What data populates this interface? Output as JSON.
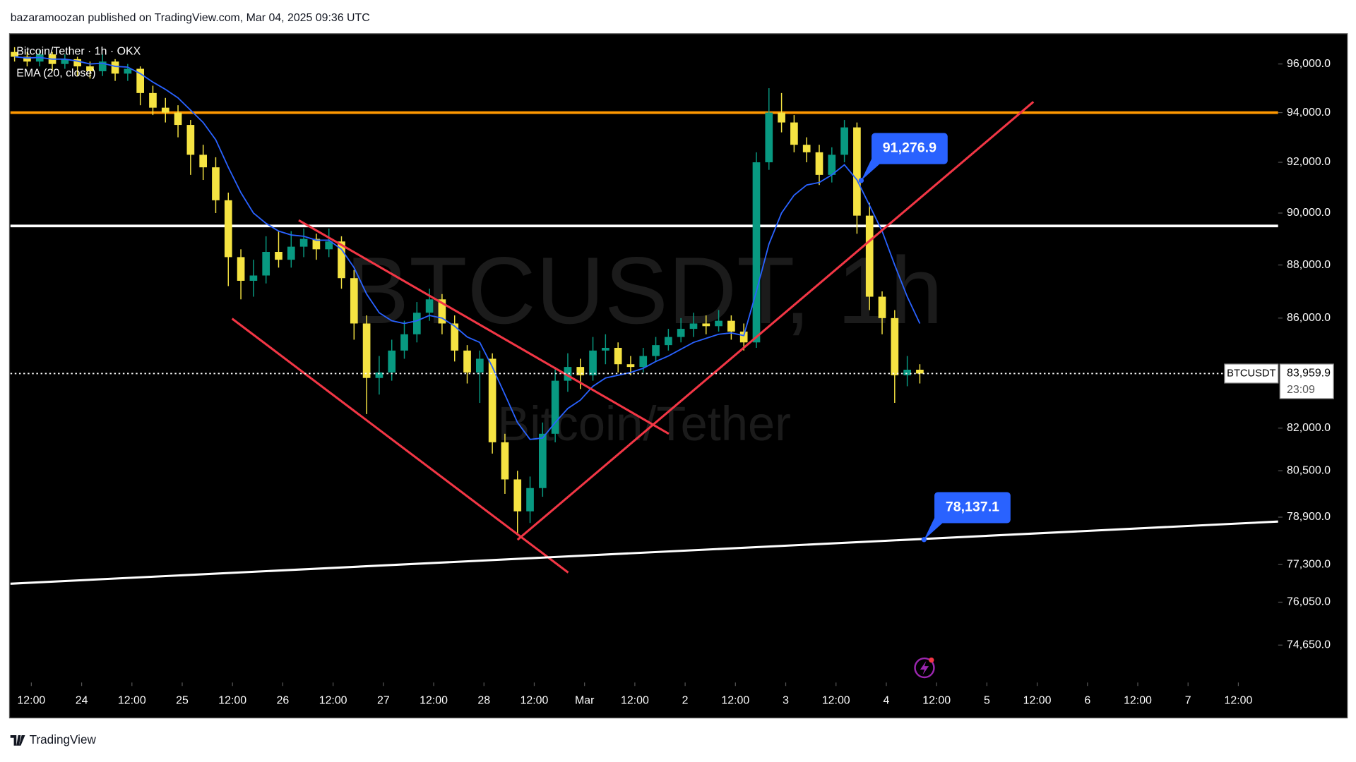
{
  "header": "bazaramoozan published on TradingView.com, Mar 04, 2025 09:36 UTC",
  "footer": "TradingView",
  "chart_data": {
    "type": "candlestick",
    "title": "Bitcoin/Tether · 1h · OKX",
    "symbol": "BTCUSDT",
    "watermark": {
      "symbol": "BTCUSDT, 1h",
      "description": "Bitcoin/Tether"
    },
    "up_color": "#089981",
    "down_color": "#f5e342",
    "log_scale": true,
    "xlim": [
      -17,
      285.5
    ],
    "ylim": [
      73450,
      97230
    ],
    "xticks": [
      {
        "value": -12,
        "label": "12:00"
      },
      {
        "value": 0,
        "label": "24"
      },
      {
        "value": 12,
        "label": "12:00"
      },
      {
        "value": 24,
        "label": "25"
      },
      {
        "value": 36,
        "label": "12:00"
      },
      {
        "value": 48,
        "label": "26"
      },
      {
        "value": 60,
        "label": "12:00"
      },
      {
        "value": 72,
        "label": "27"
      },
      {
        "value": 84,
        "label": "12:00"
      },
      {
        "value": 96,
        "label": "28"
      },
      {
        "value": 108,
        "label": "12:00"
      },
      {
        "value": 120,
        "label": "Mar"
      },
      {
        "value": 132,
        "label": "12:00"
      },
      {
        "value": 144,
        "label": "2"
      },
      {
        "value": 156,
        "label": "12:00"
      },
      {
        "value": 168,
        "label": "3"
      },
      {
        "value": 180,
        "label": "12:00"
      },
      {
        "value": 192,
        "label": "4"
      },
      {
        "value": 204,
        "label": "12:00"
      },
      {
        "value": 216,
        "label": "5"
      },
      {
        "value": 228,
        "label": "12:00"
      },
      {
        "value": 240,
        "label": "6"
      },
      {
        "value": 252,
        "label": "12:00"
      },
      {
        "value": 264,
        "label": "7"
      },
      {
        "value": 276,
        "label": "12:00"
      }
    ],
    "yticks": [
      {
        "value": 96000,
        "label": "96,000.0"
      },
      {
        "value": 94000,
        "label": "94,000.0"
      },
      {
        "value": 92000,
        "label": "92,000.0"
      },
      {
        "value": 90000,
        "label": "90,000.0"
      },
      {
        "value": 88000,
        "label": "88,000.0"
      },
      {
        "value": 86000,
        "label": "86,000.0"
      },
      {
        "value": 82000,
        "label": "82,000.0"
      },
      {
        "value": 80500,
        "label": "80,500.0"
      },
      {
        "value": 78900,
        "label": "78,900.0"
      },
      {
        "value": 77300,
        "label": "77,300.0"
      },
      {
        "value": 76050,
        "label": "76,050.0"
      },
      {
        "value": 74650,
        "label": "74,650.0"
      }
    ],
    "candles": [
      [
        -16,
        96500,
        96700,
        96100,
        96300
      ],
      [
        -13,
        96300,
        96500,
        95900,
        96100
      ],
      [
        -10,
        96100,
        96600,
        95900,
        96400
      ],
      [
        -7,
        96400,
        96500,
        95700,
        96000
      ],
      [
        -4,
        96000,
        96400,
        95800,
        96200
      ],
      [
        -1,
        96200,
        96300,
        95500,
        95900
      ],
      [
        2,
        95900,
        96100,
        95400,
        95700
      ],
      [
        5,
        95700,
        96400,
        95500,
        96100
      ],
      [
        8,
        96100,
        96200,
        95300,
        95600
      ],
      [
        11,
        95600,
        96000,
        95300,
        95800
      ],
      [
        14,
        95800,
        95900,
        94300,
        94800
      ],
      [
        17,
        94800,
        95100,
        93900,
        94200
      ],
      [
        20,
        94200,
        94600,
        93600,
        94000
      ],
      [
        23,
        94000,
        94300,
        93000,
        93500
      ],
      [
        26,
        93500,
        93700,
        91500,
        92300
      ],
      [
        29,
        92300,
        92700,
        91300,
        91800
      ],
      [
        32,
        91800,
        92200,
        90000,
        90500
      ],
      [
        35,
        90500,
        90800,
        87200,
        88300
      ],
      [
        38,
        88300,
        88600,
        86700,
        87400
      ],
      [
        41,
        87400,
        88200,
        86800,
        87600
      ],
      [
        44,
        87600,
        89100,
        87300,
        88500
      ],
      [
        47,
        88500,
        89300,
        87900,
        88200
      ],
      [
        50,
        88200,
        89300,
        87900,
        88700
      ],
      [
        53,
        88700,
        89400,
        88300,
        89000
      ],
      [
        56,
        89000,
        89200,
        88200,
        88600
      ],
      [
        59,
        88600,
        89400,
        88300,
        88900
      ],
      [
        62,
        88900,
        89100,
        87100,
        87500
      ],
      [
        65,
        87500,
        87800,
        85200,
        85800
      ],
      [
        68,
        85800,
        86100,
        82500,
        83800
      ],
      [
        71,
        83800,
        84600,
        83200,
        84000
      ],
      [
        74,
        84000,
        85200,
        83700,
        84800
      ],
      [
        77,
        84800,
        85900,
        84500,
        85400
      ],
      [
        80,
        85400,
        86600,
        85100,
        86200
      ],
      [
        83,
        86200,
        87100,
        85900,
        86700
      ],
      [
        86,
        86700,
        86900,
        85400,
        85800
      ],
      [
        89,
        85800,
        86100,
        84400,
        84800
      ],
      [
        92,
        84800,
        85000,
        83600,
        84000
      ],
      [
        95,
        84000,
        84800,
        82900,
        84500
      ],
      [
        98,
        84500,
        84700,
        81100,
        81500
      ],
      [
        101,
        81500,
        81800,
        79700,
        80200
      ],
      [
        104,
        80200,
        80500,
        78300,
        79100
      ],
      [
        107,
        79100,
        80300,
        78700,
        79900
      ],
      [
        110,
        79900,
        82200,
        79600,
        81800
      ],
      [
        113,
        81800,
        84200,
        81500,
        83700
      ],
      [
        116,
        83700,
        84700,
        83300,
        84200
      ],
      [
        119,
        84200,
        84500,
        83400,
        83900
      ],
      [
        122,
        83900,
        85300,
        83700,
        84800
      ],
      [
        125,
        84800,
        85400,
        84300,
        84900
      ],
      [
        128,
        84900,
        85100,
        84000,
        84300
      ],
      [
        131,
        84300,
        84600,
        83900,
        84200
      ],
      [
        134,
        84200,
        84900,
        84000,
        84600
      ],
      [
        137,
        84600,
        85300,
        84400,
        85000
      ],
      [
        140,
        85000,
        85600,
        84800,
        85300
      ],
      [
        143,
        85300,
        86000,
        85100,
        85600
      ],
      [
        146,
        85600,
        86200,
        85300,
        85800
      ],
      [
        149,
        85800,
        86100,
        85400,
        85700
      ],
      [
        152,
        85700,
        86300,
        85500,
        85900
      ],
      [
        155,
        85900,
        86100,
        85200,
        85500
      ],
      [
        158,
        85500,
        85800,
        84800,
        85100
      ],
      [
        161,
        85100,
        92400,
        84900,
        92000
      ],
      [
        164,
        92000,
        95000,
        91700,
        94000
      ],
      [
        167,
        94000,
        94800,
        93200,
        93600
      ],
      [
        170,
        93600,
        93900,
        92400,
        92700
      ],
      [
        173,
        92700,
        93000,
        92000,
        92400
      ],
      [
        176,
        92400,
        92700,
        91100,
        91500
      ],
      [
        179,
        91500,
        92600,
        91200,
        92300
      ],
      [
        182,
        92300,
        93700,
        92000,
        93400
      ],
      [
        185,
        93400,
        93600,
        89200,
        89900
      ],
      [
        188,
        89900,
        90400,
        86300,
        86800
      ],
      [
        191,
        86800,
        87000,
        85400,
        86000
      ],
      [
        194,
        86000,
        86300,
        82900,
        83900
      ],
      [
        197,
        83900,
        84600,
        83500,
        84100
      ],
      [
        200,
        84100,
        84300,
        83600,
        83959.9
      ]
    ],
    "ema": {
      "name": "EMA (20, close)",
      "color": "#2962ff",
      "values": [
        96300,
        96250,
        96270,
        96200,
        96200,
        96120,
        96000,
        96030,
        95900,
        95870,
        95600,
        95250,
        94950,
        94600,
        94100,
        93600,
        92900,
        91800,
        90800,
        90000,
        89600,
        89300,
        89150,
        89100,
        88950,
        88950,
        88600,
        87900,
        86900,
        86200,
        85900,
        85800,
        85900,
        86100,
        86000,
        85700,
        85300,
        85100,
        84200,
        83200,
        82200,
        81600,
        81650,
        82200,
        82700,
        83000,
        83500,
        83800,
        83900,
        84000,
        84150,
        84400,
        84600,
        84850,
        85100,
        85250,
        85400,
        85450,
        85350,
        87000,
        88800,
        90000,
        90700,
        91100,
        91200,
        91500,
        91900,
        91300,
        90300,
        89300,
        88000,
        86800,
        85800
      ]
    },
    "last_price_label": "83,959.9",
    "countdown": "23:09",
    "hlines": [
      {
        "value": 94000,
        "color": "#ff9800"
      },
      {
        "value": 89500,
        "color": "#ffffff"
      }
    ],
    "trendlines": [
      {
        "color": "#f23645",
        "x": [
          51.8,
          140.1
        ],
        "y": [
          89720,
          81800
        ]
      },
      {
        "color": "#f23645",
        "x": [
          35.9,
          116.1
        ],
        "y": [
          85980,
          77030
        ]
      },
      {
        "color": "#f23645",
        "x": [
          104,
          227.1
        ],
        "y": [
          78130,
          94440
        ]
      },
      {
        "color": "#ffffff",
        "x": [
          -17,
          285.5
        ],
        "y": [
          76660,
          78750
        ]
      }
    ],
    "annotations": [
      {
        "x": 186,
        "value": 91276.9,
        "label": "91,276.9"
      },
      {
        "x": 201,
        "value": 78137.1,
        "label": "78,137.1"
      }
    ]
  }
}
